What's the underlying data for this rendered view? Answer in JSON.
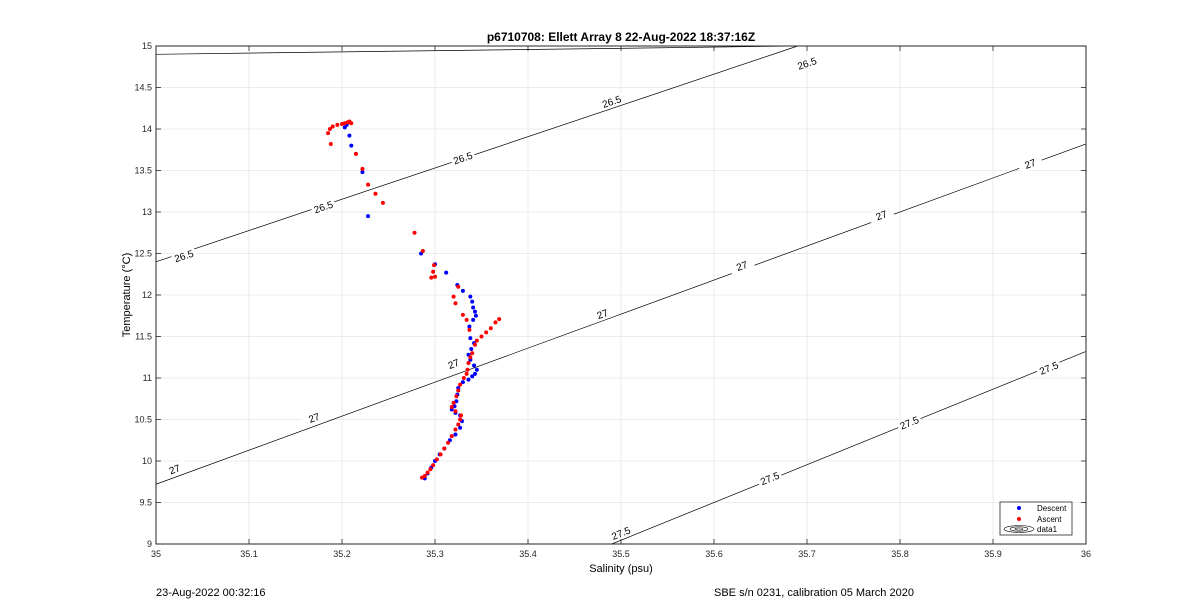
{
  "footer": {
    "timestamp": "23-Aug-2022 00:32:16",
    "sensor_note": "SBE s/n 0231, calibration 05 March 2020"
  },
  "chart_data": {
    "type": "scatter",
    "title": "p6710708: Ellett Array 8 22-Aug-2022 18:37:16Z",
    "xlabel": "Salinity (psu)",
    "ylabel": "Temperature (°C)",
    "xlim": [
      35,
      36
    ],
    "ylim": [
      9,
      15
    ],
    "xticks": [
      "35",
      "35.1",
      "35.2",
      "35.3",
      "35.4",
      "35.5",
      "35.6",
      "35.7",
      "35.8",
      "35.9",
      "36"
    ],
    "yticks": [
      "9",
      "9.5",
      "10",
      "10.5",
      "11",
      "11.5",
      "12",
      "12.5",
      "13",
      "13.5",
      "14",
      "14.5",
      "15"
    ],
    "grid": true,
    "legend_location": "bottom-right",
    "legend": [
      "Descent",
      "Ascent",
      "data1"
    ],
    "colors": {
      "descent": "#0000ff",
      "ascent": "#ff0000",
      "contour": "#000000",
      "grid": "#e6e6e6"
    },
    "contours": [
      {
        "level": "26.5",
        "lines": [
          [
            [
              35.0,
              14.9
            ],
            [
              35.69,
              15.0
            ]
          ],
          [
            [
              35.0,
              12.4
            ],
            [
              35.69,
              15.0
            ]
          ]
        ],
        "labels": [
          [
            35.7,
            14.79
          ],
          [
            35.49,
            14.33
          ],
          [
            35.33,
            13.65
          ],
          [
            35.18,
            13.06
          ],
          [
            35.03,
            12.47
          ]
        ]
      },
      {
        "level": "27",
        "lines": [
          [
            [
              35.0,
              9.72
            ],
            [
              36.0,
              13.82
            ]
          ]
        ],
        "labels": [
          [
            35.94,
            13.58
          ],
          [
            35.78,
            12.96
          ],
          [
            35.63,
            12.35
          ],
          [
            35.48,
            11.77
          ],
          [
            35.32,
            11.17
          ],
          [
            35.17,
            10.52
          ],
          [
            35.02,
            9.9
          ]
        ]
      },
      {
        "level": "27.5",
        "lines": [
          [
            [
              35.49,
              9.0
            ],
            [
              36.0,
              11.32
            ]
          ]
        ],
        "labels": [
          [
            35.96,
            11.12
          ],
          [
            35.81,
            10.46
          ],
          [
            35.66,
            9.79
          ],
          [
            35.5,
            9.13
          ]
        ]
      }
    ],
    "series": [
      {
        "name": "Descent",
        "points": [
          [
            35.205,
            14.05
          ],
          [
            35.207,
            14.08
          ],
          [
            35.203,
            14.02
          ],
          [
            35.21,
            13.8
          ],
          [
            35.208,
            13.92
          ],
          [
            35.222,
            13.48
          ],
          [
            35.228,
            12.95
          ],
          [
            35.285,
            12.5
          ],
          [
            35.3,
            12.37
          ],
          [
            35.312,
            12.27
          ],
          [
            35.324,
            12.12
          ],
          [
            35.33,
            12.05
          ],
          [
            35.338,
            11.98
          ],
          [
            35.34,
            11.92
          ],
          [
            35.341,
            11.85
          ],
          [
            35.343,
            11.8
          ],
          [
            35.344,
            11.75
          ],
          [
            35.341,
            11.7
          ],
          [
            35.337,
            11.62
          ],
          [
            35.338,
            11.48
          ],
          [
            35.342,
            11.42
          ],
          [
            35.339,
            11.35
          ],
          [
            35.336,
            11.28
          ],
          [
            35.338,
            11.22
          ],
          [
            35.342,
            11.15
          ],
          [
            35.345,
            11.1
          ],
          [
            35.343,
            11.05
          ],
          [
            35.34,
            11.02
          ],
          [
            35.336,
            10.98
          ],
          [
            35.33,
            10.95
          ],
          [
            35.325,
            10.88
          ],
          [
            35.324,
            10.8
          ],
          [
            35.323,
            10.72
          ],
          [
            35.321,
            10.66
          ],
          [
            35.318,
            10.62
          ],
          [
            35.322,
            10.58
          ],
          [
            35.327,
            10.55
          ],
          [
            35.329,
            10.48
          ],
          [
            35.327,
            10.4
          ],
          [
            35.322,
            10.32
          ],
          [
            35.316,
            10.25
          ],
          [
            35.31,
            10.15
          ],
          [
            35.305,
            10.08
          ],
          [
            35.3,
            10.0
          ],
          [
            35.296,
            9.92
          ],
          [
            35.292,
            9.85
          ],
          [
            35.289,
            9.79
          ]
        ]
      },
      {
        "name": "Ascent",
        "points": [
          [
            35.185,
            13.95
          ],
          [
            35.187,
            14.0
          ],
          [
            35.19,
            14.03
          ],
          [
            35.195,
            14.05
          ],
          [
            35.2,
            14.06
          ],
          [
            35.203,
            14.07
          ],
          [
            35.206,
            14.08
          ],
          [
            35.208,
            14.09
          ],
          [
            35.21,
            14.07
          ],
          [
            35.188,
            13.82
          ],
          [
            35.215,
            13.7
          ],
          [
            35.222,
            13.52
          ],
          [
            35.228,
            13.33
          ],
          [
            35.236,
            13.22
          ],
          [
            35.244,
            13.11
          ],
          [
            35.278,
            12.75
          ],
          [
            35.287,
            12.53
          ],
          [
            35.299,
            12.36
          ],
          [
            35.298,
            12.28
          ],
          [
            35.296,
            12.21
          ],
          [
            35.3,
            12.22
          ],
          [
            35.32,
            11.98
          ],
          [
            35.322,
            11.9
          ],
          [
            35.325,
            12.1
          ],
          [
            35.33,
            11.76
          ],
          [
            35.334,
            11.7
          ],
          [
            35.337,
            11.58
          ],
          [
            35.355,
            11.55
          ],
          [
            35.36,
            11.6
          ],
          [
            35.365,
            11.67
          ],
          [
            35.369,
            11.71
          ],
          [
            35.35,
            11.5
          ],
          [
            35.345,
            11.45
          ],
          [
            35.343,
            11.4
          ],
          [
            35.34,
            11.3
          ],
          [
            35.338,
            11.25
          ],
          [
            35.336,
            11.18
          ],
          [
            35.335,
            11.1
          ],
          [
            35.334,
            11.05
          ],
          [
            35.331,
            11.0
          ],
          [
            35.327,
            10.92
          ],
          [
            35.325,
            10.85
          ],
          [
            35.323,
            10.78
          ],
          [
            35.32,
            10.7
          ],
          [
            35.318,
            10.65
          ],
          [
            35.322,
            10.6
          ],
          [
            35.328,
            10.55
          ],
          [
            35.327,
            10.5
          ],
          [
            35.325,
            10.44
          ],
          [
            35.322,
            10.38
          ],
          [
            35.318,
            10.3
          ],
          [
            35.314,
            10.22
          ],
          [
            35.31,
            10.15
          ],
          [
            35.306,
            10.08
          ],
          [
            35.302,
            10.02
          ],
          [
            35.298,
            9.95
          ],
          [
            35.295,
            9.9
          ],
          [
            35.292,
            9.86
          ],
          [
            35.289,
            9.82
          ],
          [
            35.286,
            9.8
          ]
        ]
      }
    ]
  }
}
